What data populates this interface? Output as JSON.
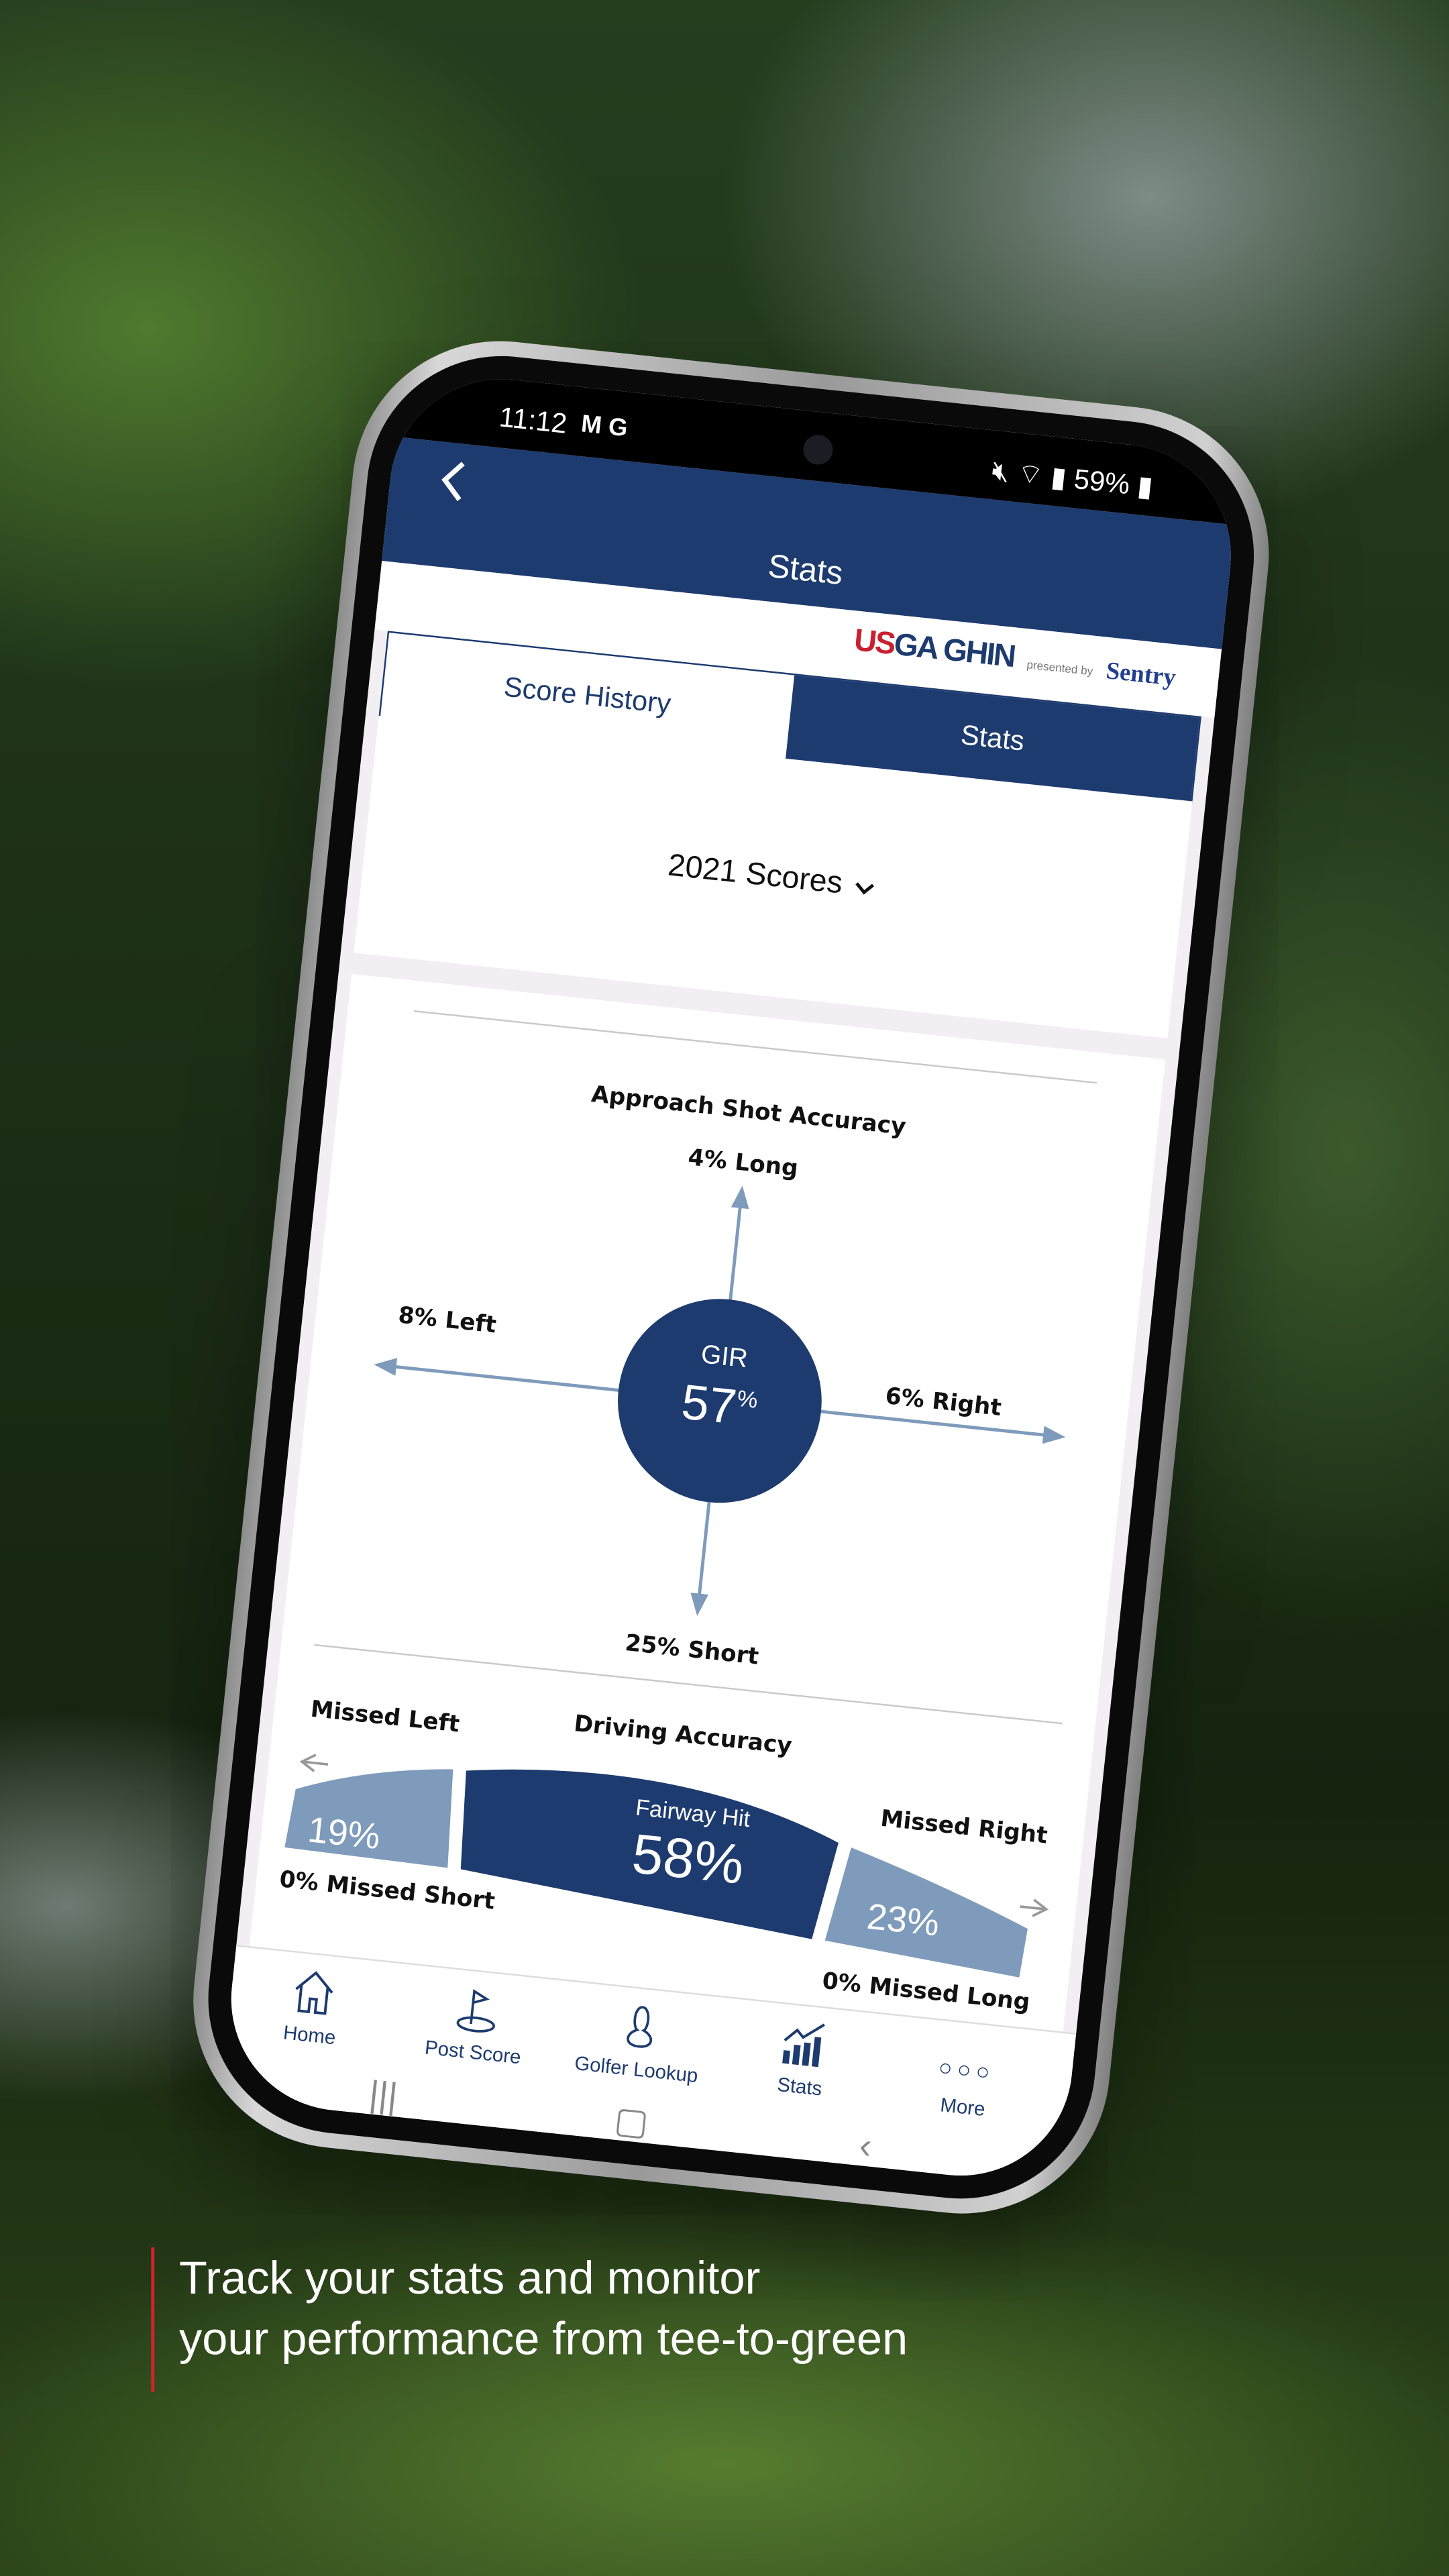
{
  "status_bar": {
    "time": "11:12",
    "left_icons": [
      "gmail-icon",
      "google-icon"
    ],
    "battery": "59%",
    "right_icons": [
      "mute-icon",
      "wifi-icon",
      "signal-icon",
      "battery-icon"
    ]
  },
  "header": {
    "title": "Stats",
    "back_icon": "chevron-left-icon"
  },
  "branding": {
    "usga_red": "US",
    "usga_blue": "GA GHIN",
    "presented_by": "presented by",
    "sponsor": "Sentry"
  },
  "tabs": [
    {
      "label": "Score History",
      "active": false
    },
    {
      "label": "Stats",
      "active": true
    }
  ],
  "filter": {
    "selected": "2021 Scores"
  },
  "approach": {
    "title": "Approach Shot Accuracy",
    "long": "4% Long",
    "left": "8% Left",
    "right": "6% Right",
    "short": "25% Short",
    "center_label": "GIR",
    "center_value": "57",
    "center_unit": "%"
  },
  "driving": {
    "title": "Driving Accuracy",
    "missed_left_label": "Missed Left",
    "missed_right_label": "Missed Right",
    "left_value": "19%",
    "center_label": "Fairway Hit",
    "center_value": "58%",
    "right_value": "23%",
    "missed_short": "0% Missed Short",
    "missed_long": "0% Missed Long"
  },
  "bottom_nav": [
    {
      "label": "Home",
      "icon": "home-icon"
    },
    {
      "label": "Post Score",
      "icon": "flag-icon"
    },
    {
      "label": "Golfer Lookup",
      "icon": "person-icon"
    },
    {
      "label": "Stats",
      "icon": "chart-icon",
      "active": true
    },
    {
      "label": "More",
      "icon": "more-icon"
    }
  ],
  "caption": {
    "line1": "Track your stats and monitor",
    "line2": "your performance from tee-to-green"
  },
  "colors": {
    "navy": "#1d3b6f",
    "light_blue": "#7f9bbb",
    "red": "#c8202f"
  }
}
